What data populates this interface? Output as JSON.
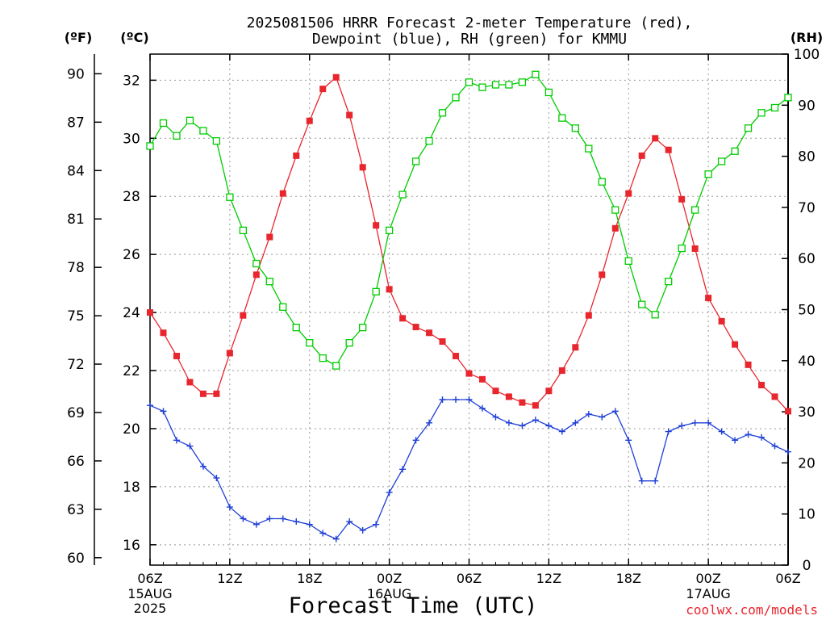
{
  "chart_data": {
    "type": "line",
    "title_line1": "2025081506 HRRR Forecast 2-meter Temperature (red),",
    "title_line2": "Dewpoint (blue), RH (green) for KMMU",
    "xlabel": "Forecast Time (UTC)",
    "credit": "coolwx.com/models",
    "left_outer_unit": "(ºF)",
    "left_inner_unit": "(ºC)",
    "right_unit": "(RH)",
    "ylim_c": [
      15.3,
      32.9
    ],
    "ylim_rh": [
      0,
      100
    ],
    "x_hour_range": [
      0,
      48
    ],
    "x_ticks": [
      {
        "hour": 0,
        "line1": "06Z",
        "line2": "15AUG",
        "line3": "2025"
      },
      {
        "hour": 6,
        "line1": "12Z"
      },
      {
        "hour": 12,
        "line1": "18Z"
      },
      {
        "hour": 18,
        "line1": "00Z",
        "line2": "16AUG"
      },
      {
        "hour": 24,
        "line1": "06Z"
      },
      {
        "hour": 30,
        "line1": "12Z"
      },
      {
        "hour": 36,
        "line1": "18Z"
      },
      {
        "hour": 42,
        "line1": "00Z",
        "line2": "17AUG"
      },
      {
        "hour": 48,
        "line1": "06Z"
      }
    ],
    "celsius_ticks": [
      16,
      18,
      20,
      22,
      24,
      26,
      28,
      30,
      32
    ],
    "fahrenheit_ticks": [
      60,
      63,
      66,
      69,
      72,
      75,
      78,
      81,
      84,
      87,
      90
    ],
    "rh_ticks": [
      0,
      10,
      20,
      30,
      40,
      50,
      60,
      70,
      80,
      90,
      100
    ],
    "colors": {
      "temperature": "#e8262e",
      "dewpoint": "#1f3fd6",
      "rh": "#00cc00"
    },
    "series": [
      {
        "name": "Temperature",
        "marker": "filled-square",
        "values": [
          24.0,
          23.3,
          22.5,
          21.6,
          21.2,
          21.2,
          22.6,
          23.9,
          25.3,
          26.6,
          28.1,
          29.4,
          30.6,
          31.7,
          32.1,
          30.8,
          29.0,
          27.0,
          24.8,
          23.8,
          23.5,
          23.3,
          23.0,
          22.5,
          21.9,
          21.7,
          21.3,
          21.1,
          20.9,
          20.8,
          21.3,
          22.0,
          22.8,
          23.9,
          25.3,
          26.9,
          28.1,
          29.4,
          30.0,
          29.6,
          27.9,
          26.2,
          24.5,
          23.7,
          22.9,
          22.2,
          21.5,
          21.1,
          20.6
        ]
      },
      {
        "name": "Dewpoint",
        "marker": "plus",
        "values": [
          20.8,
          20.6,
          19.6,
          19.4,
          18.7,
          18.3,
          17.3,
          16.9,
          16.7,
          16.9,
          16.9,
          16.8,
          16.7,
          16.4,
          16.2,
          16.8,
          16.5,
          16.7,
          17.8,
          18.6,
          19.6,
          20.2,
          21.0,
          21.0,
          21.0,
          20.7,
          20.4,
          20.2,
          20.1,
          20.3,
          20.1,
          19.9,
          20.2,
          20.5,
          20.4,
          20.6,
          19.6,
          18.2,
          18.2,
          19.9,
          20.1,
          20.2,
          20.2,
          19.9,
          19.6,
          19.8,
          19.7,
          19.4,
          19.2
        ]
      },
      {
        "name": "RH",
        "marker": "open-square",
        "values": [
          82.0,
          86.5,
          84.0,
          87.0,
          85.0,
          83.0,
          72.0,
          65.5,
          59.0,
          55.5,
          50.5,
          46.5,
          43.5,
          40.5,
          39.0,
          43.5,
          46.5,
          53.5,
          65.5,
          72.5,
          79.0,
          83.0,
          88.5,
          91.5,
          94.5,
          93.5,
          94.0,
          94.0,
          94.5,
          96.0,
          92.5,
          87.5,
          85.5,
          81.5,
          75.0,
          69.5,
          59.5,
          51.0,
          49.0,
          55.5,
          62.0,
          69.5,
          76.5,
          79.0,
          81.0,
          85.5,
          88.5,
          89.5,
          91.5
        ]
      }
    ]
  }
}
